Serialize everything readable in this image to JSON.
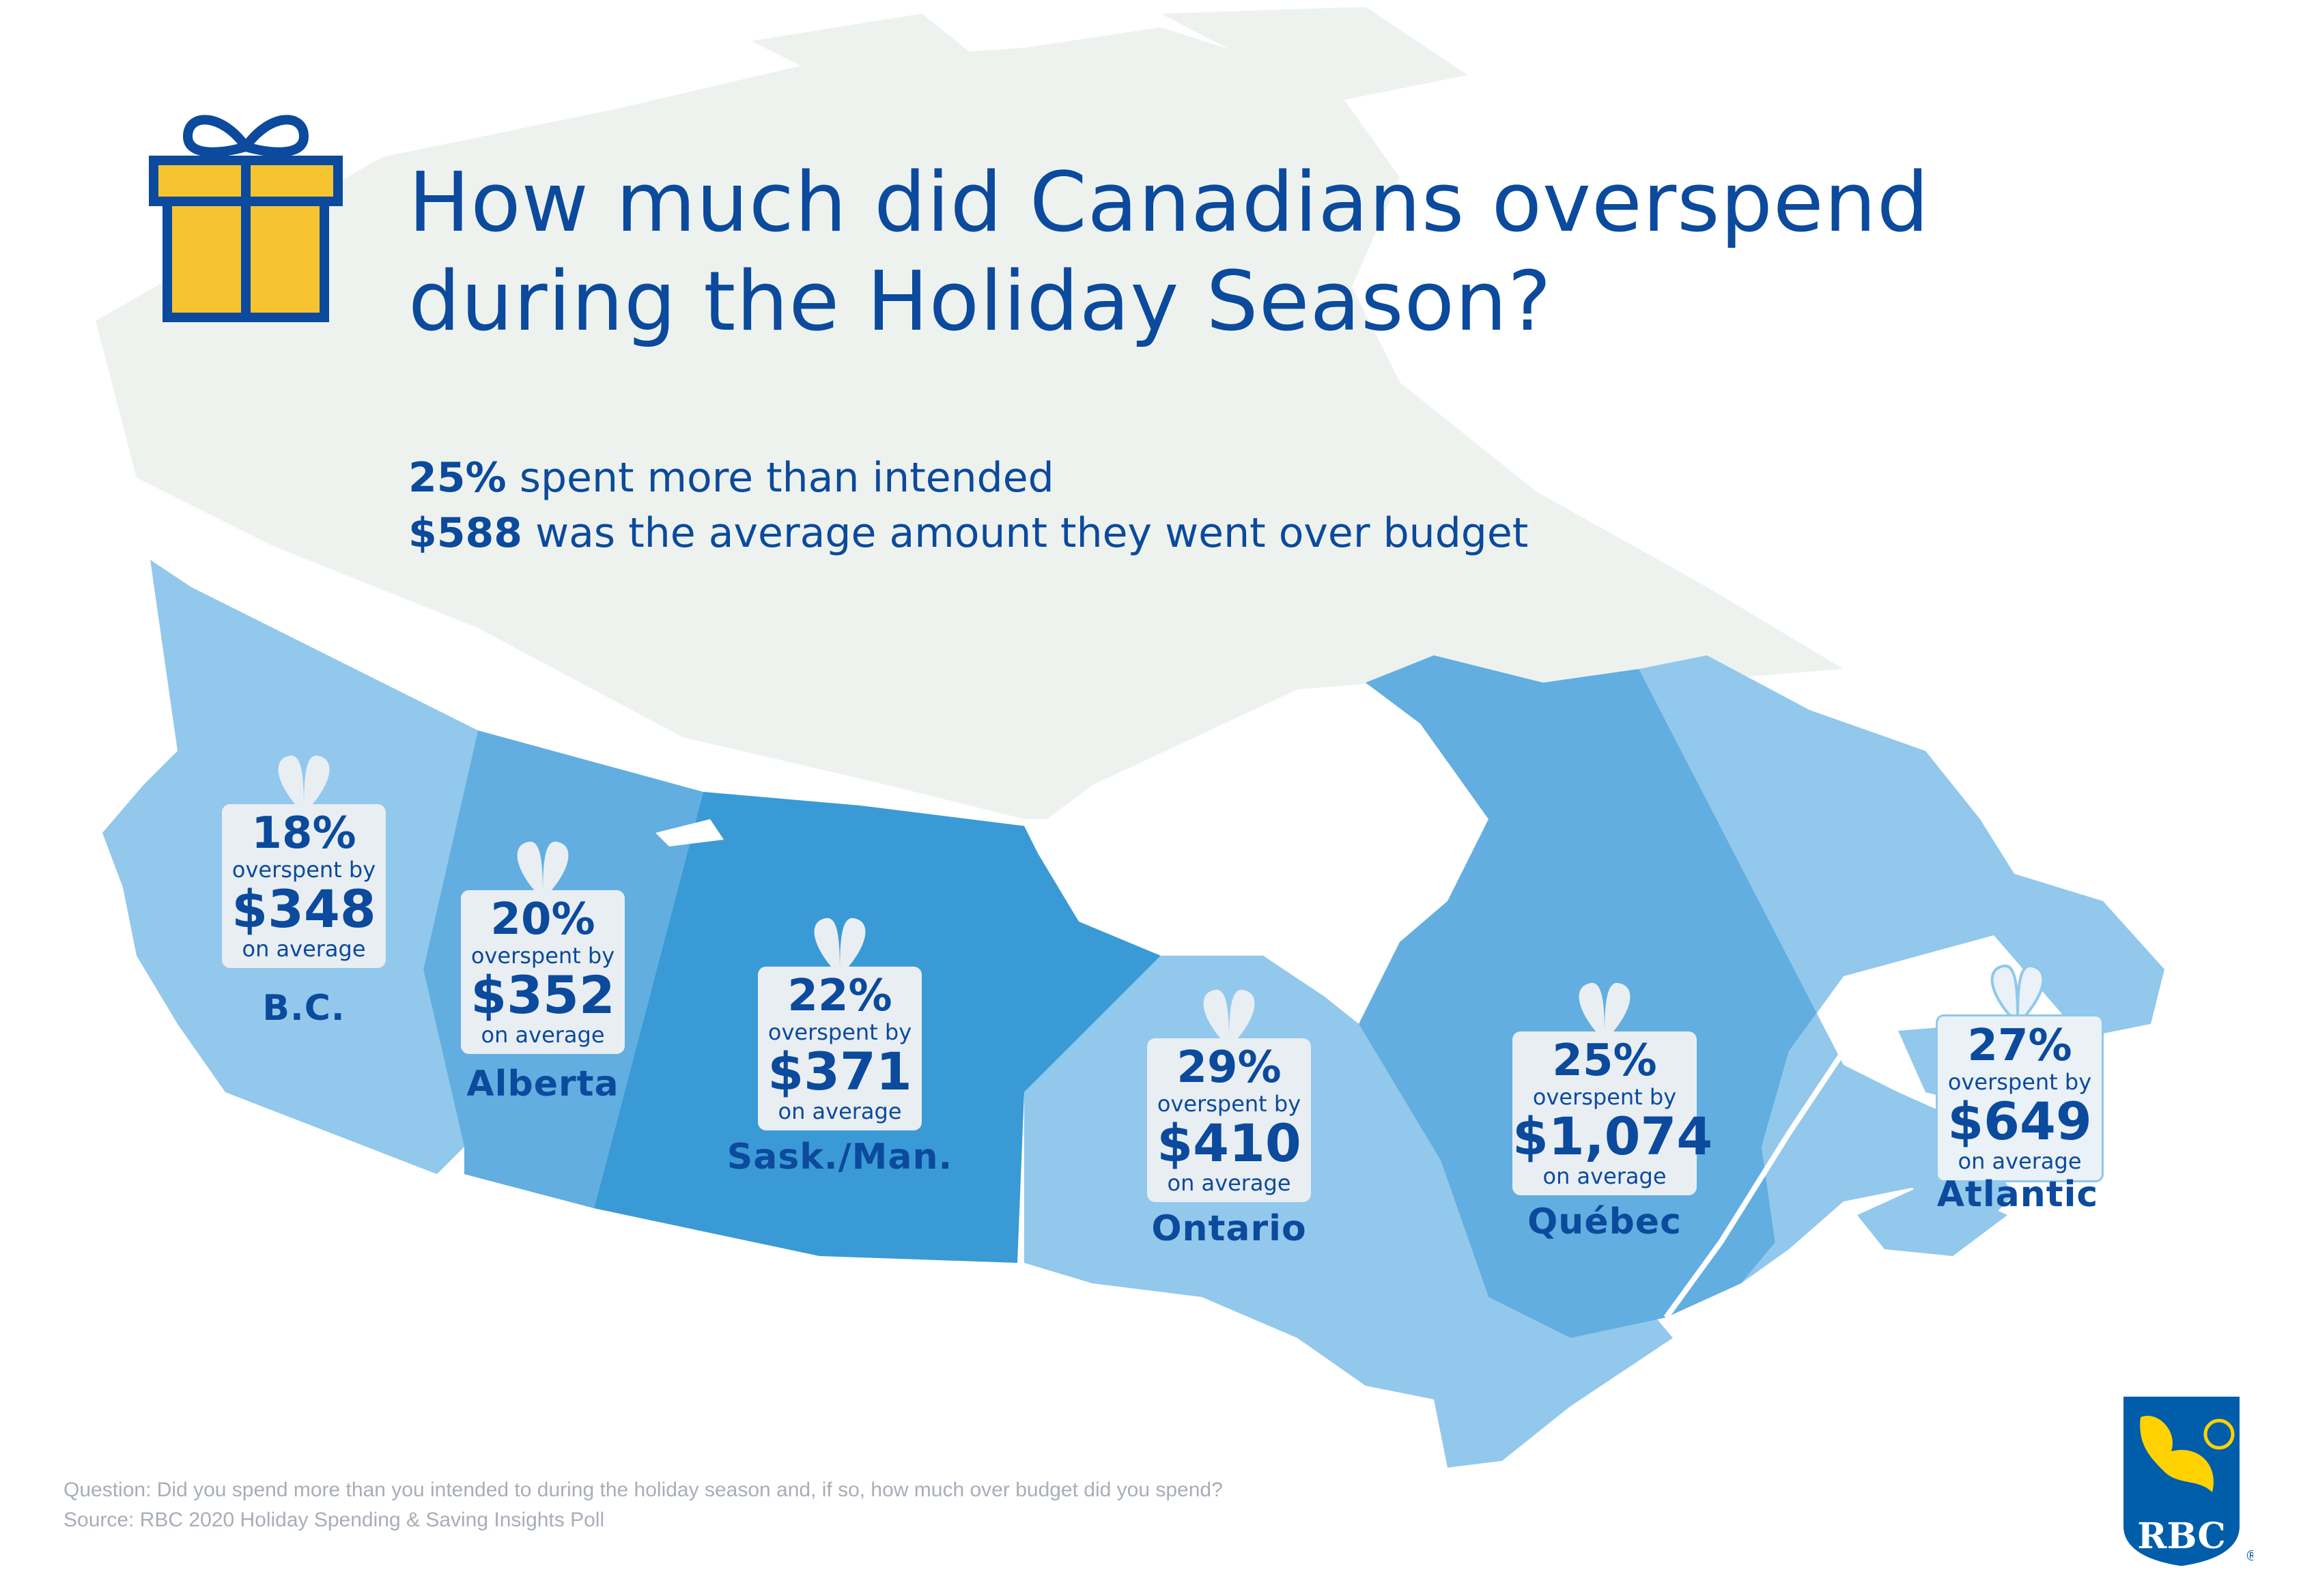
{
  "title": {
    "line1": "How much did Canadians overspend",
    "line2": "during the Holiday Season?"
  },
  "stats": [
    {
      "value": "25%",
      "text": " spent more than intended"
    },
    {
      "value": "$588",
      "text": " was the average amount they went over budget"
    }
  ],
  "regions": [
    {
      "id": "bc",
      "name": "B.C.",
      "percent": "18%",
      "label_top": "overspent by",
      "amount": "$348",
      "label_bottom": "on average"
    },
    {
      "id": "alberta",
      "name": "Alberta",
      "percent": "20%",
      "label_top": "overspent by",
      "amount": "$352",
      "label_bottom": "on average"
    },
    {
      "id": "saskman",
      "name": "Sask./Man.",
      "percent": "22%",
      "label_top": "overspent by",
      "amount": "$371",
      "label_bottom": "on average"
    },
    {
      "id": "ontario",
      "name": "Ontario",
      "percent": "29%",
      "label_top": "overspent by",
      "amount": "$410",
      "label_bottom": "on average"
    },
    {
      "id": "quebec",
      "name": "Québec",
      "percent": "25%",
      "label_top": "overspent by",
      "amount": "$1,074",
      "label_bottom": "on average"
    },
    {
      "id": "atlantic",
      "name": "Atlantic",
      "percent": "27%",
      "label_top": "overspent by",
      "amount": "$649",
      "label_bottom": "on average"
    }
  ],
  "footer": {
    "question": "Question: Did you spend more than you intended to during the holiday season and, if so, how much over budget did you spend?",
    "source": "Source: RBC 2020 Holiday Spending & Saving Insights Poll"
  },
  "logo": {
    "text": "RBC",
    "mark": "®"
  },
  "colors": {
    "primary_text": "#0b4a9c",
    "north_land": "#eef2ef",
    "bc": "#92c8ec",
    "alberta": "#62aee0",
    "saskman": "#3a9ad6",
    "ontario": "#92c8ec",
    "quebec": "#62aee0",
    "atlantic": "#92c8ec",
    "gift_yellow": "#f5c430"
  }
}
